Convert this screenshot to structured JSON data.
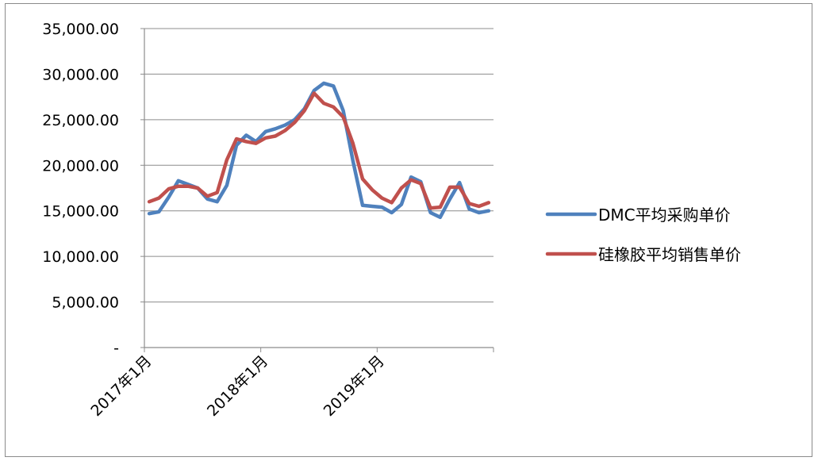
{
  "chart_data": {
    "type": "line",
    "title": "",
    "xlabel": "",
    "ylabel": "",
    "ylim": [
      0,
      35000
    ],
    "yticks": [
      "-",
      "5,000.00",
      "10,000.00",
      "15,000.00",
      "20,000.00",
      "25,000.00",
      "30,000.00",
      "35,000.00"
    ],
    "ytick_values": [
      0,
      5000,
      10000,
      15000,
      20000,
      25000,
      30000,
      35000
    ],
    "xtick_labels": [
      "2017年1月",
      "2018年1月",
      "2019年1月"
    ],
    "x": [
      "2017-01",
      "2017-02",
      "2017-03",
      "2017-04",
      "2017-05",
      "2017-06",
      "2017-07",
      "2017-08",
      "2017-09",
      "2017-10",
      "2017-11",
      "2017-12",
      "2018-01",
      "2018-02",
      "2018-03",
      "2018-04",
      "2018-05",
      "2018-06",
      "2018-07",
      "2018-08",
      "2018-09",
      "2018-10",
      "2018-11",
      "2018-12",
      "2019-01",
      "2019-02",
      "2019-03",
      "2019-04",
      "2019-05",
      "2019-06",
      "2019-07",
      "2019-08",
      "2019-09",
      "2019-10",
      "2019-11",
      "2019-12"
    ],
    "grid": "horizontal",
    "legend_position": "right",
    "series": [
      {
        "name": "DMC平均采购单价",
        "color": "#4F81BD",
        "values": [
          14700,
          14900,
          16500,
          18300,
          17900,
          17500,
          16300,
          16000,
          17800,
          22200,
          23300,
          22600,
          23700,
          24000,
          24400,
          25000,
          26200,
          28200,
          29000,
          28700,
          26000,
          20500,
          15600,
          15500,
          15400,
          14800,
          15700,
          18700,
          18200,
          14800,
          14300,
          16300,
          18100,
          15200,
          14800,
          15000
        ]
      },
      {
        "name": "硅橡胶平均销售单价",
        "color": "#C0504D",
        "values": [
          16000,
          16400,
          17400,
          17700,
          17700,
          17500,
          16600,
          17000,
          20600,
          22900,
          22600,
          22400,
          23000,
          23200,
          23800,
          24700,
          26000,
          27900,
          26800,
          26400,
          25300,
          22400,
          18500,
          17300,
          16400,
          15900,
          17500,
          18400,
          18000,
          15300,
          15400,
          17600,
          17600,
          15800,
          15500,
          15900
        ]
      }
    ]
  }
}
